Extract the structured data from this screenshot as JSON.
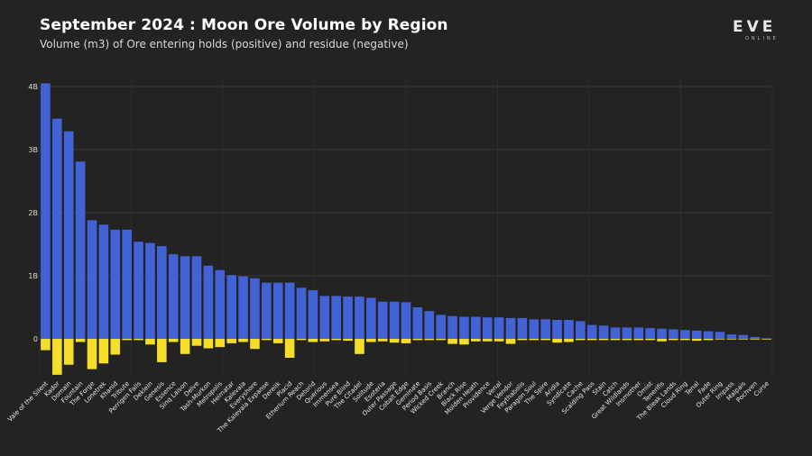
{
  "header": {
    "title": "September 2024 : Moon Ore Volume by Region",
    "subtitle": "Volume (m3) of Ore entering holds (positive) and residue (negative)",
    "logo_text": "EVE",
    "logo_subtext": "ONLINE"
  },
  "colors": {
    "background": "#232323",
    "positive": "#4262d6",
    "negative": "#f5de2a",
    "grid": "#3a3a3a"
  },
  "chart_data": {
    "type": "bar",
    "title": "September 2024 : Moon Ore Volume by Region",
    "subtitle": "Volume (m3) of Ore entering holds (positive) and residue (negative)",
    "xlabel": "",
    "ylabel": "",
    "ylim": [
      -0.6,
      4.1
    ],
    "yticks": [
      0,
      1,
      2,
      3,
      4
    ],
    "ytick_labels": [
      "0",
      "1B",
      "2B",
      "3B",
      "4B"
    ],
    "grid": true,
    "categories": [
      "Vale of the Silent",
      "Kador",
      "Domain",
      "Fountain",
      "The Forge",
      "Lonetrek",
      "Khanid",
      "Tribute",
      "Perrigen Falls",
      "Deklein",
      "Genesis",
      "Essence",
      "Sinq Laison",
      "Delve",
      "Tash-Murkon",
      "Metropolis",
      "Heimatar",
      "Kalevala",
      "Everyshore",
      "The Kalevala Expanse",
      "Derelik",
      "Placid",
      "Etherium Reach",
      "Detorid",
      "Querious",
      "Immensea",
      "Pure Blind",
      "The Citadel",
      "Solitude",
      "Esoteria",
      "Outer Passage",
      "Cobalt Edge",
      "Geminate",
      "Period Basis",
      "Wicked Creek",
      "Branch",
      "Black Rise",
      "Molden Heath",
      "Providence",
      "Venal",
      "Verge Vendor",
      "Feythabolis",
      "Paragon Soul",
      "The Spire",
      "Aridia",
      "Syndicate",
      "Cache",
      "Scalding Pass",
      "Stain",
      "Catch",
      "Great Wildlands",
      "Insmother",
      "Omist",
      "Tenerifis",
      "The Bleak Lands",
      "Cloud Ring",
      "Tenal",
      "Fade",
      "Outer Ring",
      "Impass",
      "Malpais",
      "Pochven",
      "Curse"
    ],
    "series": [
      {
        "values": [
          4.05,
          3.49,
          3.29,
          2.81,
          1.88,
          1.81,
          1.73,
          1.73,
          1.54,
          1.52,
          1.47,
          1.34,
          1.31,
          1.31,
          1.16,
          1.09,
          1.01,
          0.99,
          0.96,
          0.89,
          0.89,
          0.89,
          0.81,
          0.77,
          0.68,
          0.68,
          0.67,
          0.67,
          0.65,
          0.59,
          0.59,
          0.58,
          0.5,
          0.44,
          0.38,
          0.36,
          0.35,
          0.35,
          0.34,
          0.34,
          0.33,
          0.33,
          0.31,
          0.31,
          0.3,
          0.3,
          0.28,
          0.22,
          0.21,
          0.18,
          0.18,
          0.18,
          0.17,
          0.16,
          0.15,
          0.14,
          0.13,
          0.12,
          0.11,
          0.07,
          0.06,
          0.03,
          0.01
        ]
      },
      {
        "values": [
          -0.18,
          -0.57,
          -0.41,
          -0.05,
          -0.48,
          -0.39,
          -0.25,
          -0.02,
          -0.02,
          -0.09,
          -0.37,
          -0.05,
          -0.24,
          -0.11,
          -0.15,
          -0.13,
          -0.07,
          -0.05,
          -0.16,
          -0.02,
          -0.07,
          -0.3,
          -0.02,
          -0.05,
          -0.04,
          -0.02,
          -0.03,
          -0.24,
          -0.05,
          -0.04,
          -0.06,
          -0.07,
          -0.02,
          -0.02,
          -0.02,
          -0.08,
          -0.09,
          -0.04,
          -0.04,
          -0.04,
          -0.08,
          -0.02,
          -0.02,
          -0.02,
          -0.06,
          -0.05,
          -0.02,
          -0.02,
          -0.02,
          -0.02,
          -0.02,
          -0.02,
          -0.02,
          -0.04,
          -0.02,
          -0.02,
          -0.03,
          -0.02,
          -0.01,
          -0.01,
          -0.01,
          -0.01,
          -0.01
        ]
      }
    ]
  }
}
